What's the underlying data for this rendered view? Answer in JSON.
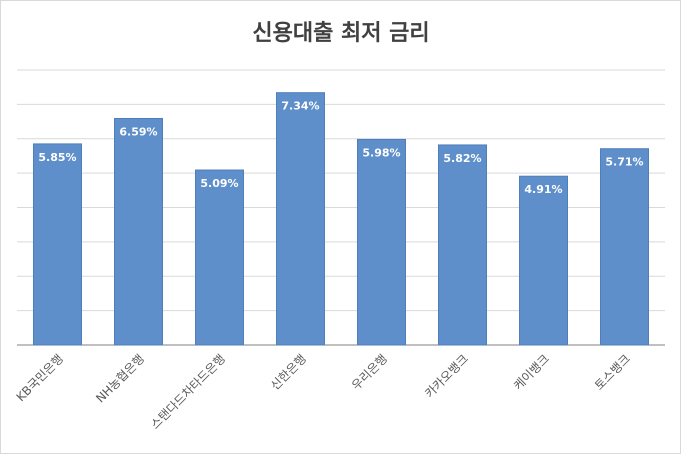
{
  "chart_data": {
    "type": "bar",
    "title": "신용대출 최저 금리",
    "categories": [
      "KB국민은행",
      "NH농협은행",
      "스탠다드차타드은행",
      "신한은행",
      "우리은행",
      "카카오뱅크",
      "케이뱅크",
      "토스뱅크"
    ],
    "values": [
      5.85,
      6.59,
      5.09,
      7.34,
      5.98,
      5.82,
      4.91,
      5.71
    ],
    "value_labels": [
      "5.85%",
      "6.59%",
      "5.09%",
      "7.34%",
      "5.98%",
      "5.82%",
      "4.91%",
      "5.71%"
    ],
    "color": "#5f8fca",
    "ylim": [
      0,
      8
    ],
    "yticks": [
      0,
      1,
      2,
      3,
      4,
      5,
      6,
      7,
      8
    ],
    "grid": true
  }
}
